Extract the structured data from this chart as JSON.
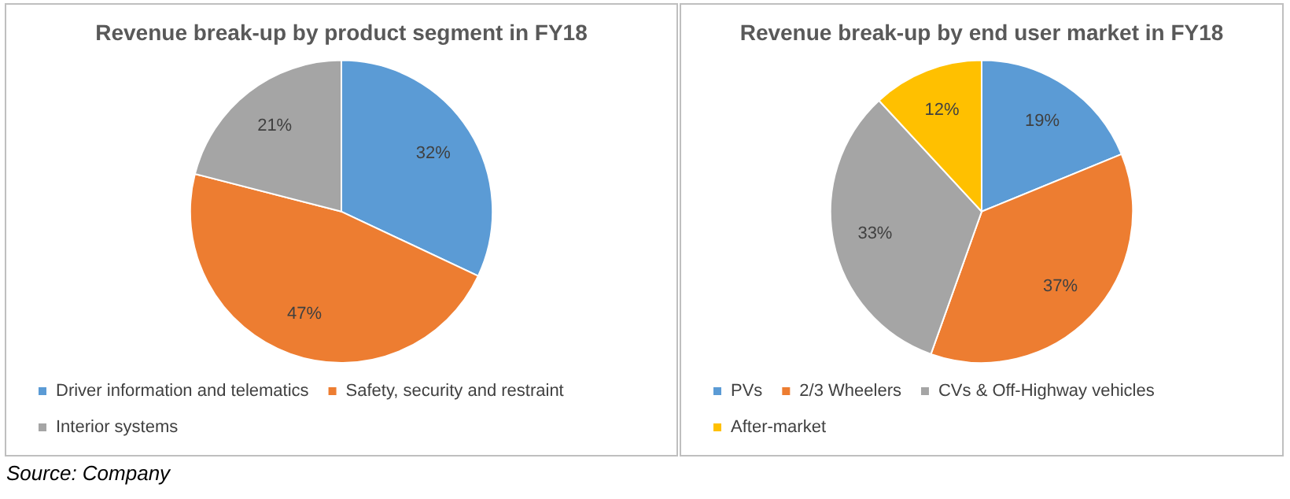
{
  "chart_data": [
    {
      "type": "pie",
      "title": "Revenue break-up by product segment in FY18",
      "categories": [
        "Driver information and telematics",
        "Safety, security and restraint",
        "Interior systems"
      ],
      "values": [
        32,
        47,
        21
      ],
      "colors": [
        "#5b9bd5",
        "#ed7d31",
        "#a5a5a5"
      ],
      "value_labels": [
        "32%",
        "47%",
        "21%"
      ],
      "legend": "bottom",
      "annotations": [
        "Source: Company"
      ]
    },
    {
      "type": "pie",
      "title": "Revenue break-up by end user market in FY18",
      "categories": [
        "PVs",
        "2/3 Wheelers",
        "CVs & Off-Highway vehicles",
        "After-market"
      ],
      "values": [
        19,
        37,
        33,
        12
      ],
      "colors": [
        "#5b9bd5",
        "#ed7d31",
        "#a5a5a5",
        "#ffc000"
      ],
      "value_labels": [
        "19%",
        "37%",
        "33%",
        "12%"
      ],
      "legend": "bottom"
    }
  ]
}
